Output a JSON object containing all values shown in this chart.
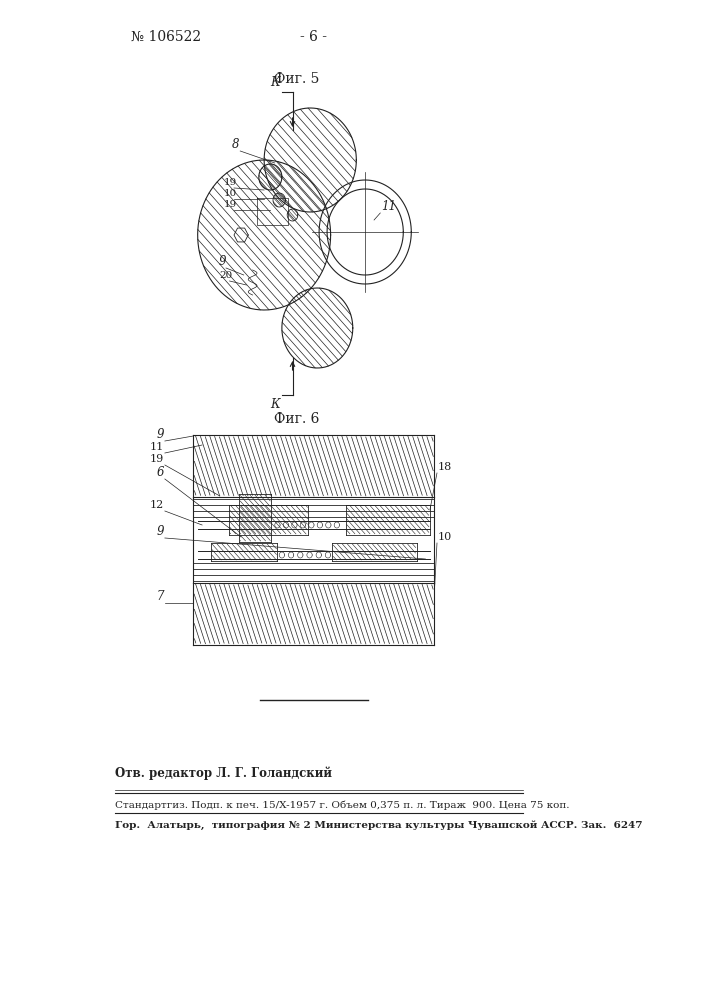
{
  "page_number": "106522",
  "page_label": "- 6 -",
  "fig5_label": "Фиг. 5",
  "fig6_label": "Фиг. 6",
  "bg_color": "#ffffff",
  "line_color": "#222222",
  "footer_line1": "Отв. редактор Л. Г. Голандский",
  "footer_line2": "Стандартгиз. Подп. к печ. 15/X-1957 г. Объем 0,375 п. л. Тираж  900. Цена 75 коп.",
  "footer_line3": "Гор.  Алатырь,  типография № 2 Министерства культуры Чувашской АССР. Зак.  6247"
}
